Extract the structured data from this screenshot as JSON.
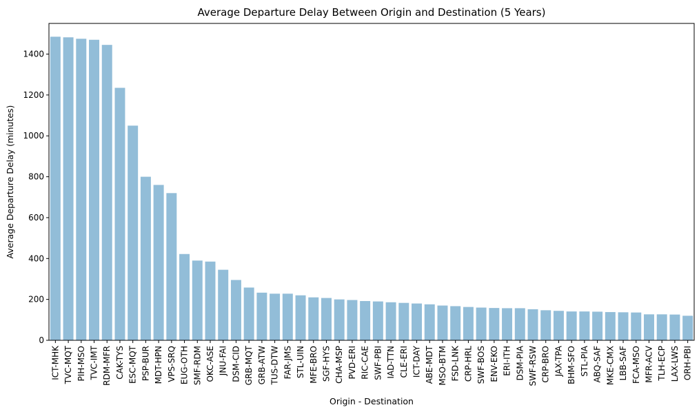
{
  "chart_data": {
    "type": "bar",
    "title": "Average Departure Delay Between Origin and Destination (5 Years)",
    "xlabel": "Origin - Destination",
    "ylabel": "Average Departure Delay (minutes)",
    "ylim": [
      0,
      1550
    ],
    "yticks": [
      0,
      200,
      400,
      600,
      800,
      1000,
      1200,
      1400
    ],
    "bar_color": "#92bdd8",
    "grid": false,
    "categories": [
      "ICT-MHK",
      "TVC-MQT",
      "PIH-MSO",
      "TVC-IMT",
      "RDM-MFR",
      "CAK-TYS",
      "ESC-MQT",
      "PSP-BUR",
      "MDT-HPN",
      "VPS-SRQ",
      "EUG-OTH",
      "SMF-RDM",
      "OKC-ASE",
      "JNU-FAI",
      "DSM-CID",
      "GRB-MQT",
      "GRB-ATW",
      "TUS-DTW",
      "FAR-JMS",
      "STL-UIN",
      "MFE-BRO",
      "SGF-HYS",
      "CHA-MSP",
      "PVD-ERI",
      "RIC-CAE",
      "SWF-PBI",
      "IAD-TTN",
      "CLE-ERI",
      "ICT-DAY",
      "ABE-MDT",
      "MSO-BTM",
      "FSD-LNK",
      "CRP-HRL",
      "SWF-BOS",
      "ENV-EKO",
      "ERI-ITH",
      "DSM-PIA",
      "SWF-RSW",
      "CRP-BRO",
      "JAX-TPA",
      "BHM-SFO",
      "STL-PIA",
      "ABQ-SAF",
      "MKE-CMX",
      "LBB-SAF",
      "FCA-MSO",
      "MFR-ACV",
      "TLH-ECP",
      "LAX-LWS",
      "ORH-PBI"
    ],
    "values": [
      1485,
      1482,
      1475,
      1470,
      1445,
      1235,
      1050,
      800,
      760,
      720,
      422,
      390,
      385,
      345,
      295,
      258,
      233,
      228,
      228,
      220,
      210,
      207,
      200,
      197,
      192,
      190,
      186,
      183,
      180,
      176,
      170,
      167,
      163,
      160,
      158,
      157,
      157,
      152,
      147,
      144,
      141,
      141,
      140,
      138,
      137,
      136,
      127,
      127,
      126,
      120
    ]
  }
}
